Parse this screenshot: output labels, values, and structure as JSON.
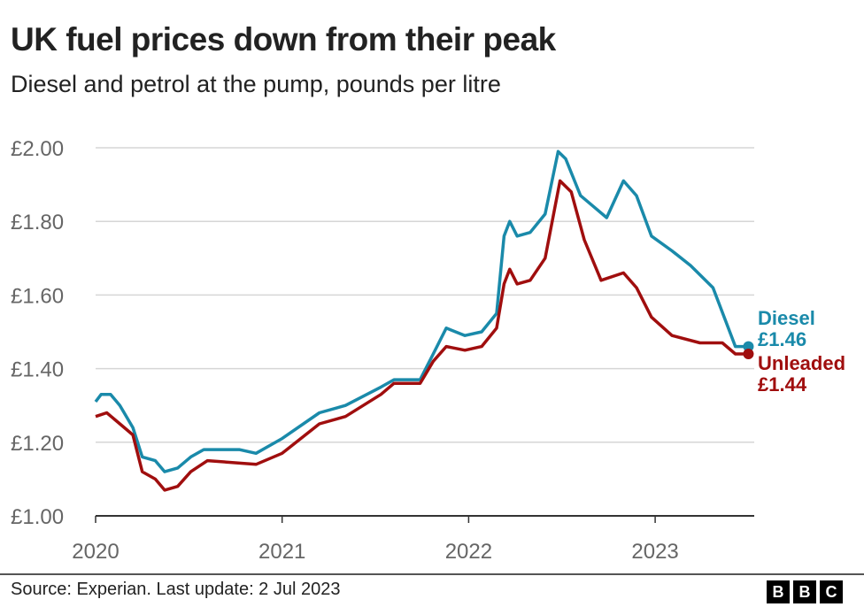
{
  "title": "UK fuel prices down from their peak",
  "subtitle": "Diesel and petrol at the pump, pounds per litre",
  "source": "Source: Experian. Last update: 2 Jul 2023",
  "logo": [
    "B",
    "B",
    "C"
  ],
  "chart_data": {
    "type": "line",
    "title": "UK fuel prices down from their peak",
    "subtitle": "Diesel and petrol at the pump, pounds per litre",
    "xlim": [
      2020,
      2023.55
    ],
    "ylim": [
      1.0,
      2.0
    ],
    "x_ticks": [
      2020,
      2021,
      2022,
      2023
    ],
    "x_tick_labels": [
      "2020",
      "2021",
      "2022",
      "2023"
    ],
    "y_ticks": [
      1.0,
      1.2,
      1.4,
      1.6,
      1.8,
      2.0
    ],
    "y_tick_labels": [
      "£1.00",
      "£1.20",
      "£1.40",
      "£1.60",
      "£1.80",
      "£2.00"
    ],
    "grid": "horizontal",
    "series": [
      {
        "name": "Diesel",
        "color": "#1a8aaa",
        "end_label": "£1.46",
        "x": [
          2020.0,
          2020.03,
          2020.08,
          2020.13,
          2020.2,
          2020.25,
          2020.32,
          2020.37,
          2020.44,
          2020.51,
          2020.58,
          2020.77,
          2020.86,
          2021.0,
          2021.2,
          2021.34,
          2021.53,
          2021.6,
          2021.74,
          2021.81,
          2021.88,
          2021.98,
          2022.07,
          2022.15,
          2022.19,
          2022.22,
          2022.26,
          2022.33,
          2022.41,
          2022.48,
          2022.52,
          2022.6,
          2022.67,
          2022.74,
          2022.83,
          2022.9,
          2022.98,
          2023.09,
          2023.19,
          2023.31,
          2023.43,
          2023.5
        ],
        "y": [
          1.31,
          1.33,
          1.33,
          1.3,
          1.24,
          1.16,
          1.15,
          1.12,
          1.13,
          1.16,
          1.18,
          1.18,
          1.17,
          1.21,
          1.28,
          1.3,
          1.35,
          1.37,
          1.37,
          1.44,
          1.51,
          1.49,
          1.5,
          1.55,
          1.76,
          1.8,
          1.76,
          1.77,
          1.82,
          1.99,
          1.97,
          1.87,
          1.84,
          1.81,
          1.91,
          1.87,
          1.76,
          1.72,
          1.68,
          1.62,
          1.46,
          1.46
        ]
      },
      {
        "name": "Unleaded",
        "color": "#a00e0e",
        "end_label": "£1.44",
        "x": [
          2020.0,
          2020.06,
          2020.13,
          2020.2,
          2020.25,
          2020.32,
          2020.37,
          2020.44,
          2020.51,
          2020.6,
          2020.86,
          2021.0,
          2021.2,
          2021.34,
          2021.53,
          2021.6,
          2021.74,
          2021.81,
          2021.88,
          2021.98,
          2022.07,
          2022.15,
          2022.19,
          2022.22,
          2022.26,
          2022.33,
          2022.41,
          2022.49,
          2022.55,
          2022.62,
          2022.71,
          2022.83,
          2022.9,
          2022.98,
          2023.09,
          2023.24,
          2023.36,
          2023.43,
          2023.5
        ],
        "y": [
          1.27,
          1.28,
          1.25,
          1.22,
          1.12,
          1.1,
          1.07,
          1.08,
          1.12,
          1.15,
          1.14,
          1.17,
          1.25,
          1.27,
          1.33,
          1.36,
          1.36,
          1.42,
          1.46,
          1.45,
          1.46,
          1.51,
          1.63,
          1.67,
          1.63,
          1.64,
          1.7,
          1.91,
          1.88,
          1.75,
          1.64,
          1.66,
          1.62,
          1.54,
          1.49,
          1.47,
          1.47,
          1.44,
          1.44
        ]
      }
    ]
  }
}
